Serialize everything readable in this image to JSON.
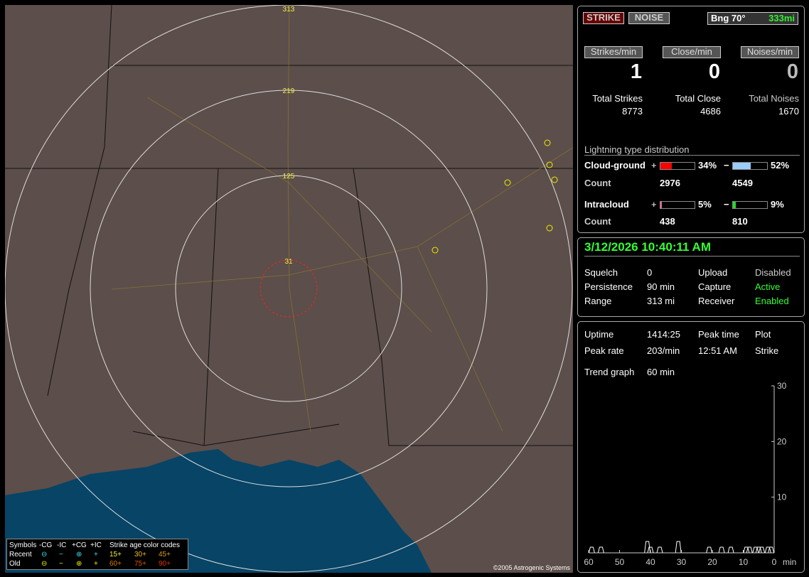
{
  "map": {
    "range_labels": [
      "31",
      "125",
      "219",
      "313"
    ],
    "copyright": "©2005 Astrogenic Systems",
    "legend": {
      "header": [
        "Symbols",
        "-CG",
        "-IC",
        "+CG",
        "+IC",
        "Strike age color codes"
      ],
      "recent": {
        "label": "Recent",
        "symbols": [
          "⊖",
          "−",
          "⊕",
          "+"
        ],
        "ages": [
          "15+",
          "30+",
          "45+"
        ]
      },
      "old": {
        "label": "Old",
        "symbols": [
          "⊖",
          "−",
          "⊕",
          "+"
        ],
        "ages": [
          "60+",
          "75+",
          "90+"
        ]
      }
    }
  },
  "top": {
    "strike_btn": "STRIKE",
    "noise_btn": "NOISE",
    "bearing": "Bng 70°",
    "distance": "333mi",
    "strikes_min_label": "Strikes/min",
    "close_min_label": "Close/min",
    "noises_min_label": "Noises/min",
    "strikes_min": "1",
    "close_min": "0",
    "noises_min": "0",
    "total_strikes_label": "Total Strikes",
    "total_close_label": "Total Close",
    "total_noises_label": "Total Noises",
    "total_strikes": "8773",
    "total_close": "4686",
    "total_noises": "1670"
  },
  "dist": {
    "title": "Lightning type distribution",
    "cg_label": "Cloud-ground",
    "ic_label": "Intracloud",
    "count_label": "Count",
    "plus": "+",
    "minus": "−",
    "cg_pos_pct": "34%",
    "cg_neg_pct": "52%",
    "ic_pos_pct": "5%",
    "ic_neg_pct": "9%",
    "cg_pos_count": "2976",
    "cg_neg_count": "4549",
    "ic_pos_count": "438",
    "ic_neg_count": "810",
    "fills": {
      "cg_pos": 34,
      "cg_neg": 52,
      "ic_pos": 5,
      "ic_neg": 9
    },
    "colors": {
      "cg_pos": "#ff0000",
      "cg_neg": "#99ccff",
      "ic_pos": "#ee6699",
      "ic_neg": "#22dd22"
    }
  },
  "status": {
    "datetime": "3/12/2026 10:40:11 AM",
    "squelch_label": "Squelch",
    "squelch": "0",
    "persistence_label": "Persistence",
    "persistence": "90 min",
    "range_label": "Range",
    "range": "313 mi",
    "upload_label": "Upload",
    "upload": "Disabled",
    "capture_label": "Capture",
    "capture": "Active",
    "receiver_label": "Receiver",
    "receiver": "Enabled"
  },
  "stats": {
    "uptime_label": "Uptime",
    "uptime": "1414:25",
    "peak_time_label": "Peak time",
    "plot_label": "Plot",
    "peak_rate_label": "Peak rate",
    "peak_rate": "203/min",
    "peak_time": "12:51 AM",
    "plot": "Strike",
    "trend_label": "Trend graph",
    "trend": "60 min"
  },
  "chart_data": {
    "type": "line",
    "x_ticks": [
      "60",
      "50",
      "40",
      "30",
      "20",
      "10",
      "0"
    ],
    "x_unit": "min",
    "y_ticks": [
      "10",
      "20",
      "30"
    ],
    "ylim": [
      0,
      30
    ],
    "xlim": [
      60,
      0
    ],
    "x": [
      59,
      56,
      41,
      40,
      37,
      31,
      21,
      17,
      14,
      9,
      8,
      6,
      5,
      4,
      2,
      1
    ],
    "values": [
      1,
      1,
      2,
      1,
      1,
      2,
      1,
      1,
      1,
      1,
      1,
      1,
      1,
      1,
      1,
      1
    ]
  }
}
